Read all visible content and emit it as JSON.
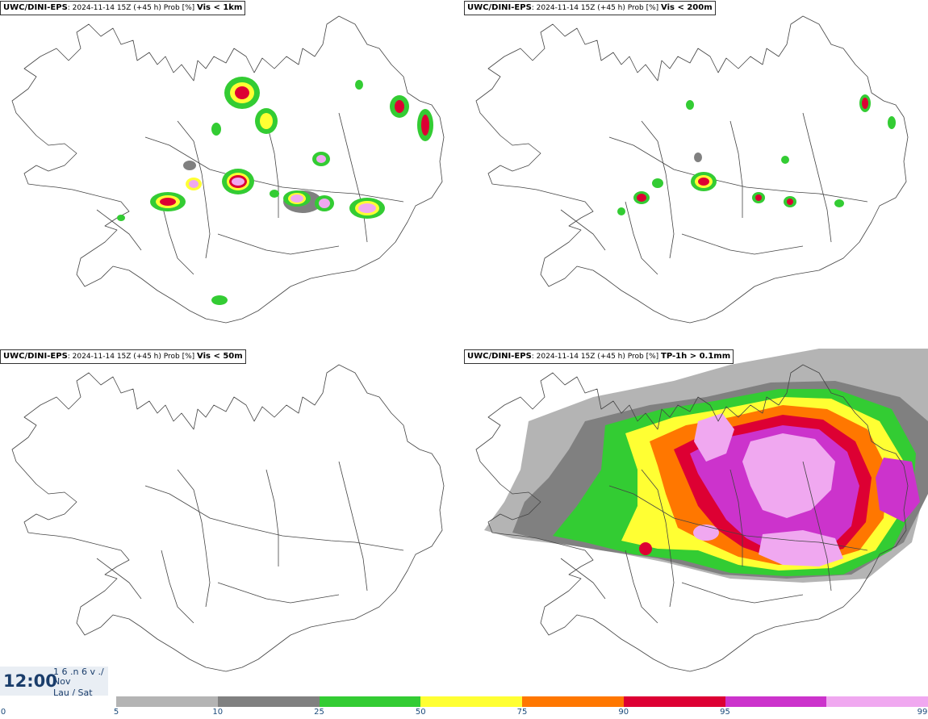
{
  "panels": [
    {
      "model": "UWC/DINI-EPS",
      "run": ": 2024-11-14 15Z (+45 h) Prob [%] ",
      "variable": "Vis < 1km"
    },
    {
      "model": "UWC/DINI-EPS",
      "run": ": 2024-11-14 15Z (+45 h) Prob [%] ",
      "variable": "Vis < 200m"
    },
    {
      "model": "UWC/DINI-EPS",
      "run": ": 2024-11-14 15Z (+45 h) Prob [%] ",
      "variable": "Vis < 50m"
    },
    {
      "model": "UWC/DINI-EPS",
      "run": ": 2024-11-14 15Z (+45 h) Prob [%] ",
      "variable": "TP-1h > 0.1mm"
    }
  ],
  "timebox": {
    "time": "12:00",
    "line1": "1 6 .n 6 v ./",
    "line2": "Nov",
    "line3": "Lau / Sat"
  },
  "legend": {
    "labels": [
      "0",
      "5",
      "10",
      "25",
      "50",
      "75",
      "90",
      "95",
      "99"
    ],
    "colors": [
      "#b4b4b4",
      "#808080",
      "#33cc33",
      "#ffff33",
      "#ff7700",
      "#dd0033",
      "#cc33cc",
      "#f0a8f0"
    ]
  },
  "colors": {
    "coast": "#444444",
    "shade_light": "#b4b4b4",
    "shade_dark": "#808080",
    "green": "#33cc33",
    "yellow": "#ffff33",
    "orange": "#ff7700",
    "red": "#dd0033",
    "magenta": "#cc33cc",
    "pink": "#f0a8f0"
  }
}
